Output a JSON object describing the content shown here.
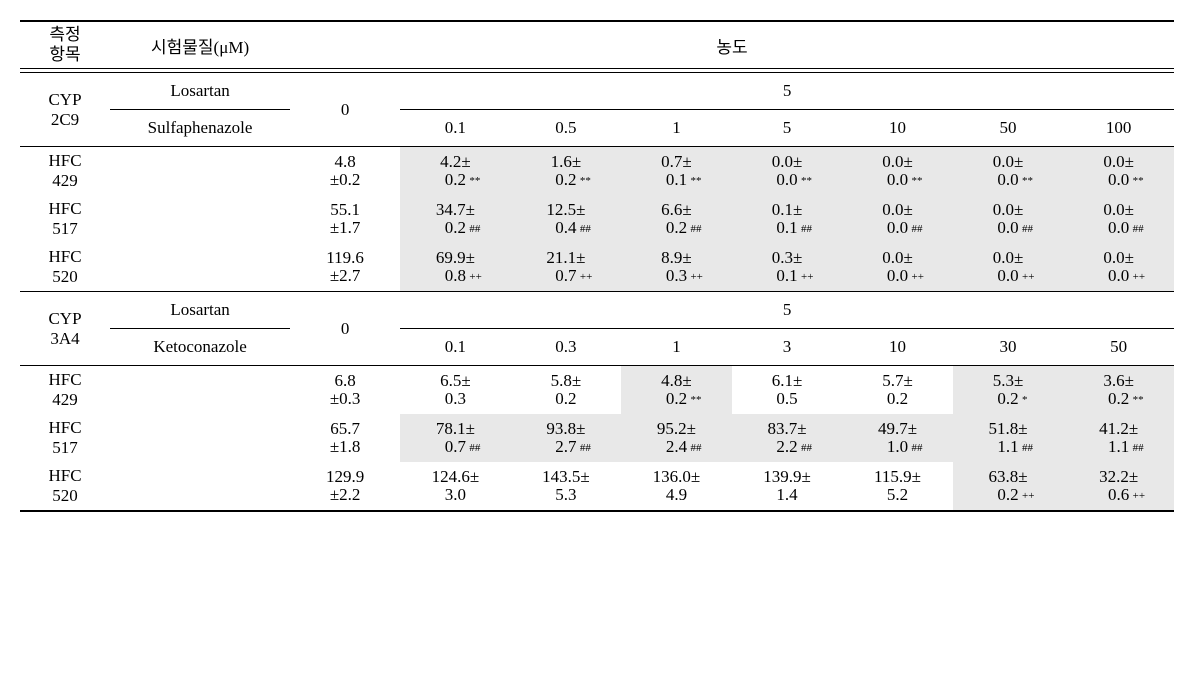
{
  "colors": {
    "bg": "#ffffff",
    "text": "#000000",
    "rule": "#000000",
    "shade": "#e8e8e8"
  },
  "typography": {
    "family": "Times New Roman, serif",
    "base_pt": 17,
    "sup_pt": 11
  },
  "headers": {
    "col0_line1": "측정",
    "col0_line2": "항목",
    "col1": "시험물질(μM)",
    "mega": "농도"
  },
  "sections": [
    {
      "cyp_line1": "CYP",
      "cyp_line2": "2C9",
      "substance_top": "Losartan",
      "substance_bot": "Sulfaphenazole",
      "zero": "0",
      "top_conc": "5",
      "conc": [
        "0.1",
        "0.5",
        "1",
        "5",
        "10",
        "50",
        "100"
      ],
      "rows": [
        {
          "name_l1": "HFC",
          "name_l2": "429",
          "base_l1": "4.8",
          "base_l2": "±0.2",
          "cells": [
            {
              "l1": "4.2±",
              "l2": "0.2",
              "sup": "**",
              "shade": true
            },
            {
              "l1": "1.6±",
              "l2": "0.2",
              "sup": "**",
              "shade": true
            },
            {
              "l1": "0.7±",
              "l2": "0.1",
              "sup": "**",
              "shade": true
            },
            {
              "l1": "0.0±",
              "l2": "0.0",
              "sup": "**",
              "shade": true
            },
            {
              "l1": "0.0±",
              "l2": "0.0",
              "sup": "**",
              "shade": true
            },
            {
              "l1": "0.0±",
              "l2": "0.0",
              "sup": "**",
              "shade": true
            },
            {
              "l1": "0.0±",
              "l2": "0.0",
              "sup": "**",
              "shade": true
            }
          ]
        },
        {
          "name_l1": "HFC",
          "name_l2": "517",
          "base_l1": "55.1",
          "base_l2": "±1.7",
          "cells": [
            {
              "l1": "34.7±",
              "l2": "0.2",
              "sup": "##",
              "shade": true
            },
            {
              "l1": "12.5±",
              "l2": "0.4",
              "sup": "##",
              "shade": true
            },
            {
              "l1": "6.6±",
              "l2": "0.2",
              "sup": "##",
              "shade": true
            },
            {
              "l1": "0.1±",
              "l2": "0.1",
              "sup": "##",
              "shade": true
            },
            {
              "l1": "0.0±",
              "l2": "0.0",
              "sup": "##",
              "shade": true
            },
            {
              "l1": "0.0±",
              "l2": "0.0",
              "sup": "##",
              "shade": true
            },
            {
              "l1": "0.0±",
              "l2": "0.0",
              "sup": "##",
              "shade": true
            }
          ]
        },
        {
          "name_l1": "HFC",
          "name_l2": "520",
          "base_l1": "119.6",
          "base_l2": "±2.7",
          "cells": [
            {
              "l1": "69.9±",
              "l2": "0.8",
              "sup": "++",
              "shade": true
            },
            {
              "l1": "21.1±",
              "l2": "0.7",
              "sup": "++",
              "shade": true
            },
            {
              "l1": "8.9±",
              "l2": "0.3",
              "sup": "++",
              "shade": true
            },
            {
              "l1": "0.3±",
              "l2": "0.1",
              "sup": "++",
              "shade": true
            },
            {
              "l1": "0.0±",
              "l2": "0.0",
              "sup": "++",
              "shade": true
            },
            {
              "l1": "0.0±",
              "l2": "0.0",
              "sup": "++",
              "shade": true
            },
            {
              "l1": "0.0±",
              "l2": "0.0",
              "sup": "++",
              "shade": true
            }
          ]
        }
      ]
    },
    {
      "cyp_line1": "CYP",
      "cyp_line2": "3A4",
      "substance_top": "Losartan",
      "substance_bot": "Ketoconazole",
      "zero": "0",
      "top_conc": "5",
      "conc": [
        "0.1",
        "0.3",
        "1",
        "3",
        "10",
        "30",
        "50"
      ],
      "rows": [
        {
          "name_l1": "HFC",
          "name_l2": "429",
          "base_l1": "6.8",
          "base_l2": "±0.3",
          "cells": [
            {
              "l1": "6.5±",
              "l2": "0.3",
              "sup": "",
              "shade": false
            },
            {
              "l1": "5.8±",
              "l2": "0.2",
              "sup": "",
              "shade": false
            },
            {
              "l1": "4.8±",
              "l2": "0.2",
              "sup": "**",
              "shade": true
            },
            {
              "l1": "6.1±",
              "l2": "0.5",
              "sup": "",
              "shade": false
            },
            {
              "l1": "5.7±",
              "l2": "0.2",
              "sup": "",
              "shade": false
            },
            {
              "l1": "5.3±",
              "l2": "0.2",
              "sup": "*",
              "shade": true
            },
            {
              "l1": "3.6±",
              "l2": "0.2",
              "sup": "**",
              "shade": true
            }
          ]
        },
        {
          "name_l1": "HFC",
          "name_l2": "517",
          "base_l1": "65.7",
          "base_l2": "±1.8",
          "cells": [
            {
              "l1": "78.1±",
              "l2": "0.7",
              "sup": "##",
              "shade": true
            },
            {
              "l1": "93.8±",
              "l2": "2.7",
              "sup": "##",
              "shade": true
            },
            {
              "l1": "95.2±",
              "l2": "2.4",
              "sup": "##",
              "shade": true
            },
            {
              "l1": "83.7±",
              "l2": "2.2",
              "sup": "##",
              "shade": true
            },
            {
              "l1": "49.7±",
              "l2": "1.0",
              "sup": "##",
              "shade": true
            },
            {
              "l1": "51.8±",
              "l2": "1.1",
              "sup": "##",
              "shade": true
            },
            {
              "l1": "41.2±",
              "l2": "1.1",
              "sup": "##",
              "shade": true
            }
          ]
        },
        {
          "name_l1": "HFC",
          "name_l2": "520",
          "base_l1": "129.9",
          "base_l2": "±2.2",
          "cells": [
            {
              "l1": "124.6±",
              "l2": "3.0",
              "sup": "",
              "shade": false
            },
            {
              "l1": "143.5±",
              "l2": "5.3",
              "sup": "",
              "shade": false
            },
            {
              "l1": "136.0±",
              "l2": "4.9",
              "sup": "",
              "shade": false
            },
            {
              "l1": "139.9±",
              "l2": "1.4",
              "sup": "",
              "shade": false
            },
            {
              "l1": "115.9±",
              "l2": "5.2",
              "sup": "",
              "shade": false
            },
            {
              "l1": "63.8±",
              "l2": "0.2",
              "sup": "++",
              "shade": true
            },
            {
              "l1": "32.2±",
              "l2": "0.6",
              "sup": "++",
              "shade": true
            }
          ]
        }
      ]
    }
  ]
}
